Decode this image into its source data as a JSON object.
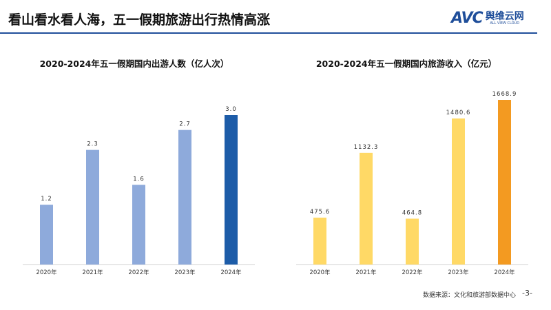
{
  "header": {
    "title": "看山看水看人海，五一假期旅游出行热情高涨",
    "logo_cn": "舆维云网",
    "logo_en": "ALL VIEW CLOUD",
    "logo_mark": "AVC",
    "accent": "#1f4e9a"
  },
  "footer": {
    "source": "数据来源：文化和旅游部数据中心",
    "page": "-3-"
  },
  "chart_data": [
    {
      "type": "bar",
      "title": "2020-2024年五一假期国内出游人数（亿人次）",
      "categories": [
        "2020年",
        "2021年",
        "2022年",
        "2023年",
        "2024年"
      ],
      "values": [
        1.2,
        2.3,
        1.6,
        2.7,
        3.0
      ],
      "labels": [
        "1.2",
        "2.3",
        "1.6",
        "2.7",
        "3.0"
      ],
      "ylim": [
        0,
        3.0
      ],
      "colors": [
        "#8eaadb",
        "#8eaadb",
        "#8eaadb",
        "#8eaadb",
        "#1d5ca8"
      ],
      "grid": false
    },
    {
      "type": "bar",
      "title": "2020-2024年五一假期国内旅游收入（亿元）",
      "categories": [
        "2020年",
        "2021年",
        "2022年",
        "2023年",
        "2024年"
      ],
      "values": [
        475.6,
        1132.3,
        464.8,
        1480.6,
        1668.9
      ],
      "labels": [
        "475.6",
        "1132.3",
        "464.8",
        "1480.6",
        "1668.9"
      ],
      "ylim": [
        0,
        1668.9
      ],
      "colors": [
        "#ffd966",
        "#ffd966",
        "#ffd966",
        "#ffd966",
        "#f39a21"
      ],
      "grid": false
    }
  ]
}
